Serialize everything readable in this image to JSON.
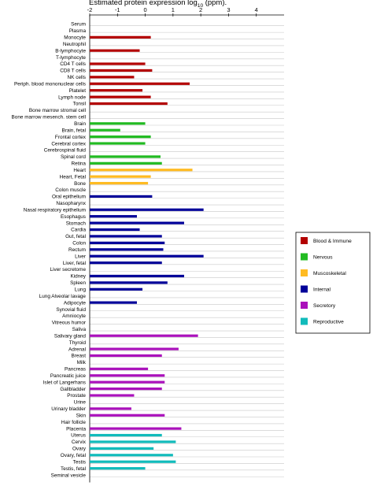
{
  "chart_data": {
    "type": "bar",
    "orientation": "horizontal",
    "title": "Estimated protein expression log",
    "title_sub": "10",
    "title_suffix": " (ppm).",
    "xlim": [
      -2,
      5
    ],
    "xticks": [
      {
        "v": -2,
        "label": "-2"
      },
      {
        "v": -1,
        "label": "-1"
      },
      {
        "v": 0,
        "label": "0"
      },
      {
        "v": 1,
        "label": "1"
      },
      {
        "v": 2,
        "label": "2"
      },
      {
        "v": 3,
        "label": "3"
      },
      {
        "v": 4,
        "label": "4"
      }
    ],
    "grid": true,
    "legend_position": "right",
    "groups": [
      {
        "name": "Blood & Immune",
        "color": "#b30000"
      },
      {
        "name": "Nervous",
        "color": "#22bb22"
      },
      {
        "name": "Muscoskeletal",
        "color": "#ffbb22"
      },
      {
        "name": "Internal",
        "color": "#000099"
      },
      {
        "name": "Secretory",
        "color": "#aa11bb"
      },
      {
        "name": "Reproductive",
        "color": "#11bbbb"
      }
    ],
    "categories": [
      {
        "label": "Serum",
        "group": 0,
        "value": null
      },
      {
        "label": "Plasma",
        "group": 0,
        "value": null
      },
      {
        "label": "Monocyte",
        "group": 0,
        "value": 0.2
      },
      {
        "label": "Neutrophil",
        "group": 0,
        "value": null
      },
      {
        "label": "B-lymphocyte",
        "group": 0,
        "value": -0.2
      },
      {
        "label": "T-lymphocyte",
        "group": 0,
        "value": null
      },
      {
        "label": "CD4 T cells",
        "group": 0,
        "value": 0.0
      },
      {
        "label": "CD8 T cells",
        "group": 0,
        "value": 0.25
      },
      {
        "label": "NK cells",
        "group": 0,
        "value": -0.4
      },
      {
        "label": "Periph. blood mononuclear cells",
        "group": 0,
        "value": 1.6
      },
      {
        "label": "Platelet",
        "group": 0,
        "value": -0.1
      },
      {
        "label": "Lymph node",
        "group": 0,
        "value": 0.2
      },
      {
        "label": "Tonsil",
        "group": 0,
        "value": 0.8
      },
      {
        "label": "Bone marrow stromal cell",
        "group": 0,
        "value": null
      },
      {
        "label": "Bone marrow mesench. stem cell",
        "group": 0,
        "value": null
      },
      {
        "label": "Brain",
        "group": 1,
        "value": 0.0
      },
      {
        "label": "Brain, fetal",
        "group": 1,
        "value": -0.9
      },
      {
        "label": "Frontal cortex",
        "group": 1,
        "value": 0.2
      },
      {
        "label": "Cerebral cortex",
        "group": 1,
        "value": 0.0
      },
      {
        "label": "Cerebrospinal fluid",
        "group": 1,
        "value": null
      },
      {
        "label": "Spinal cord",
        "group": 1,
        "value": 0.55
      },
      {
        "label": "Retina",
        "group": 1,
        "value": 0.6
      },
      {
        "label": "Heart",
        "group": 2,
        "value": 1.7
      },
      {
        "label": "Heart, Fetal",
        "group": 2,
        "value": 0.2
      },
      {
        "label": "Bone",
        "group": 2,
        "value": 0.1
      },
      {
        "label": "Colon muscle",
        "group": 2,
        "value": null
      },
      {
        "label": "Oral epithelium",
        "group": 3,
        "value": 0.25
      },
      {
        "label": "Nasopharynx",
        "group": 3,
        "value": null
      },
      {
        "label": "Nasal respiratory epithelium",
        "group": 3,
        "value": 2.1
      },
      {
        "label": "Esophagus",
        "group": 3,
        "value": -0.3
      },
      {
        "label": "Stomach",
        "group": 3,
        "value": 1.4
      },
      {
        "label": "Cardia",
        "group": 3,
        "value": -0.2
      },
      {
        "label": "Gut, fetal",
        "group": 3,
        "value": 0.6
      },
      {
        "label": "Colon",
        "group": 3,
        "value": 0.7
      },
      {
        "label": "Rectum",
        "group": 3,
        "value": 0.65
      },
      {
        "label": "Liver",
        "group": 3,
        "value": 2.1
      },
      {
        "label": "Liver, fetal",
        "group": 3,
        "value": 0.6
      },
      {
        "label": "Liver secretome",
        "group": 3,
        "value": null
      },
      {
        "label": "Kidney",
        "group": 3,
        "value": 1.4
      },
      {
        "label": "Spleen",
        "group": 3,
        "value": 0.8
      },
      {
        "label": "Lung",
        "group": 3,
        "value": -0.1
      },
      {
        "label": "Lung Alveolar lavage",
        "group": 3,
        "value": null
      },
      {
        "label": "Adipocyte",
        "group": 3,
        "value": -0.3
      },
      {
        "label": "Synovial fluid",
        "group": 3,
        "value": null
      },
      {
        "label": "Amniocyte",
        "group": 3,
        "value": null
      },
      {
        "label": "Vitreous humor",
        "group": 3,
        "value": null
      },
      {
        "label": "Saliva",
        "group": 4,
        "value": null
      },
      {
        "label": "Salivary gland",
        "group": 4,
        "value": 1.9
      },
      {
        "label": "Thyroid",
        "group": 4,
        "value": null
      },
      {
        "label": "Adrenal",
        "group": 4,
        "value": 1.2
      },
      {
        "label": "Breast",
        "group": 4,
        "value": 0.6
      },
      {
        "label": "Milk",
        "group": 4,
        "value": null
      },
      {
        "label": "Pancreas",
        "group": 4,
        "value": 0.1
      },
      {
        "label": "Pancreatic juice",
        "group": 4,
        "value": 0.7
      },
      {
        "label": "Islet of Langerhans",
        "group": 4,
        "value": 0.7
      },
      {
        "label": "Gallbladder",
        "group": 4,
        "value": 0.6
      },
      {
        "label": "Prostate",
        "group": 4,
        "value": -0.4
      },
      {
        "label": "Urine",
        "group": 4,
        "value": null
      },
      {
        "label": "Urinary bladder",
        "group": 4,
        "value": -0.5
      },
      {
        "label": "Skin",
        "group": 4,
        "value": 0.7
      },
      {
        "label": "Hair follicle",
        "group": 4,
        "value": null
      },
      {
        "label": "Placenta",
        "group": 4,
        "value": 1.3
      },
      {
        "label": "Uterus",
        "group": 5,
        "value": 0.6
      },
      {
        "label": "Cervix",
        "group": 5,
        "value": 1.1
      },
      {
        "label": "Ovary",
        "group": 5,
        "value": 0.3
      },
      {
        "label": "Ovary, fetal",
        "group": 5,
        "value": 1.0
      },
      {
        "label": "Testis",
        "group": 5,
        "value": 1.1
      },
      {
        "label": "Testis, fetal",
        "group": 5,
        "value": 0.0
      },
      {
        "label": "Seminal vesicle",
        "group": 5,
        "value": null
      }
    ]
  }
}
